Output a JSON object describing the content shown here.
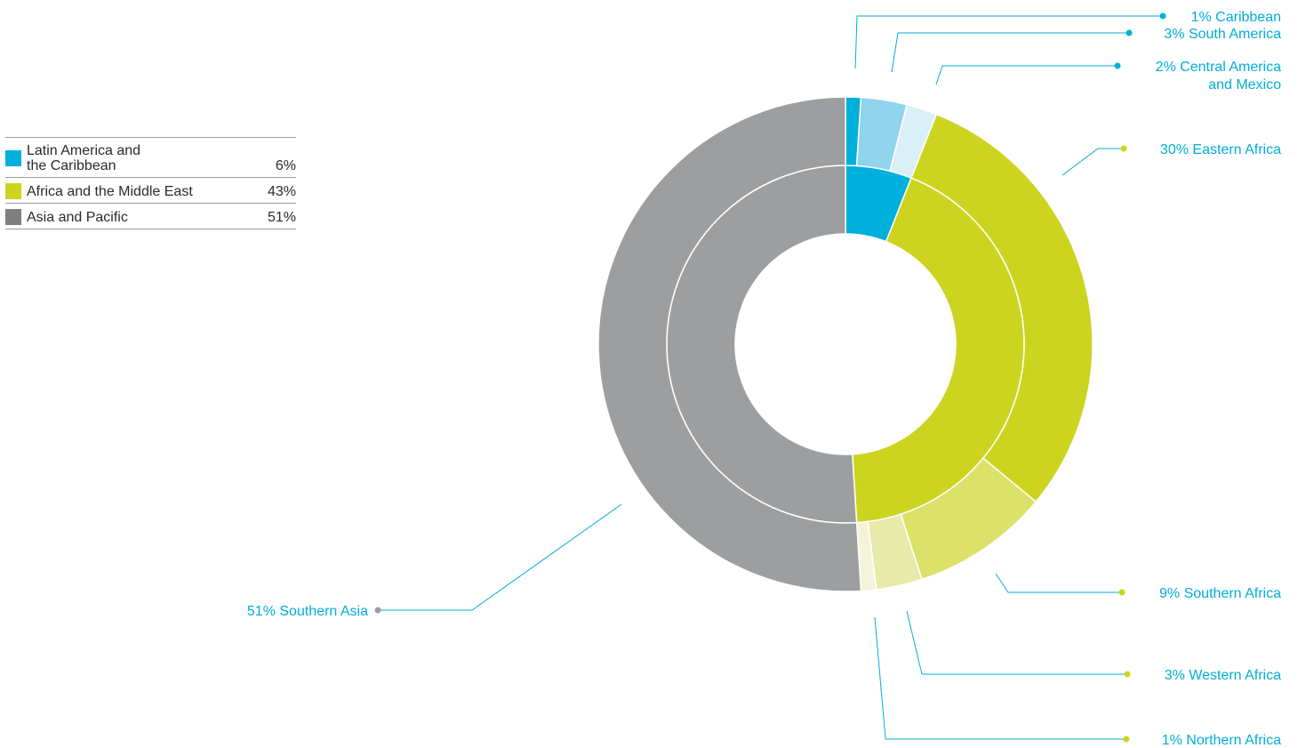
{
  "colors": {
    "latin": "#00b0dc",
    "africa": "#ccd420",
    "asia": "#9d9e9f",
    "callout_text": "#00aed9"
  },
  "legend": [
    {
      "label": "Latin America and\nthe Caribbean",
      "value": "6%",
      "color": "#00b0dc"
    },
    {
      "label": "Africa and the Middle East",
      "value": "43%",
      "color": "#ccd420"
    },
    {
      "label": "Asia and Pacific",
      "value": "51%",
      "color": "#7f7f80"
    }
  ],
  "chart_data": {
    "type": "pie",
    "subtype": "nested-donut",
    "inner_ring": [
      {
        "name": "Latin America and the Caribbean",
        "value": 6,
        "color": "#00b0dc"
      },
      {
        "name": "Africa and the Middle East",
        "value": 43,
        "color": "#ccd420"
      },
      {
        "name": "Asia and Pacific",
        "value": 51,
        "color": "#9d9e9f"
      }
    ],
    "outer_ring": [
      {
        "name": "Caribbean",
        "value": 1,
        "color": "#00b0dc",
        "label_lines": [
          "1% Caribbean"
        ]
      },
      {
        "name": "South America",
        "value": 3,
        "color": "#8fd3ec",
        "label_lines": [
          "3% South America"
        ]
      },
      {
        "name": "Central America and Mexico",
        "value": 2,
        "color": "#d9f0f8",
        "label_lines": [
          "2% Central America",
          "and Mexico"
        ]
      },
      {
        "name": "Eastern Africa",
        "value": 30,
        "color": "#ccd420",
        "label_lines": [
          "30% Eastern Africa"
        ]
      },
      {
        "name": "Southern Africa",
        "value": 9,
        "color": "#dce16a",
        "label_lines": [
          "9% Southern Africa"
        ]
      },
      {
        "name": "Western Africa",
        "value": 3,
        "color": "#e7eaa8",
        "label_lines": [
          "3% Western Africa"
        ]
      },
      {
        "name": "Northern Africa",
        "value": 1,
        "color": "#f3f4da",
        "label_lines": [
          "1% Northern Africa"
        ]
      },
      {
        "name": "Southern Asia",
        "value": 51,
        "color": "#9d9e9f",
        "label_lines": [
          "51% Southern Asia"
        ]
      }
    ],
    "legend_placement": "top-left"
  }
}
